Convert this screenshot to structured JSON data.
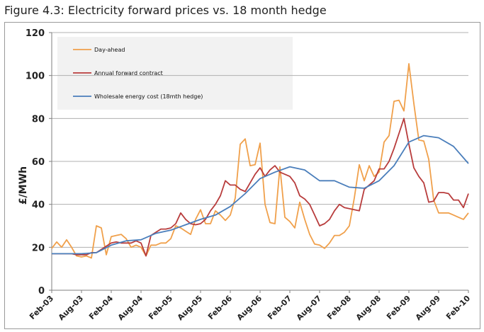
{
  "figure_title": "Figure 4.3: Electricity forward prices vs. 18 month hedge",
  "chart_data": {
    "type": "line",
    "title": "Figure 4.3: Electricity forward prices vs. 18 month hedge",
    "xlabel": "",
    "ylabel": "£/MWh",
    "ylim": [
      0,
      120
    ],
    "xlim": [
      "2003-02",
      "2010-02"
    ],
    "grid": "horizontal",
    "legend_placement": "top-left",
    "yticks": [
      0,
      20,
      40,
      60,
      80,
      100,
      120
    ],
    "xtick_labels": [
      "Feb-03",
      "Aug-03",
      "Feb-04",
      "Aug-04",
      "Feb-05",
      "Aug-05",
      "Feb-06",
      "Aug-06",
      "Feb-07",
      "Aug-07",
      "Feb-08",
      "Aug-08",
      "Feb-09",
      "Aug-09",
      "Feb-10"
    ],
    "series": [
      {
        "name": "Day-ahead",
        "color": "#F0A04B",
        "points": [
          [
            "2003-02",
            19.5
          ],
          [
            "2003-03",
            22.5
          ],
          [
            "2003-04",
            20
          ],
          [
            "2003-05",
            23.5
          ],
          [
            "2003-06",
            20
          ],
          [
            "2003-07",
            16
          ],
          [
            "2003-08",
            15.5
          ],
          [
            "2003-09",
            16
          ],
          [
            "2003-10",
            15
          ],
          [
            "2003-11",
            30
          ],
          [
            "2003-12",
            29
          ],
          [
            "2004-01",
            16.5
          ],
          [
            "2004-02",
            25
          ],
          [
            "2004-03",
            25.5
          ],
          [
            "2004-04",
            26
          ],
          [
            "2004-05",
            24
          ],
          [
            "2004-06",
            20
          ],
          [
            "2004-07",
            21
          ],
          [
            "2004-08",
            20
          ],
          [
            "2004-09",
            16
          ],
          [
            "2004-10",
            21
          ],
          [
            "2004-11",
            21
          ],
          [
            "2004-12",
            22
          ],
          [
            "2005-01",
            22
          ],
          [
            "2005-02",
            24
          ],
          [
            "2005-03",
            30
          ],
          [
            "2005-04",
            29
          ],
          [
            "2005-05",
            27.5
          ],
          [
            "2005-06",
            26
          ],
          [
            "2005-07",
            33
          ],
          [
            "2005-08",
            37.5
          ],
          [
            "2005-09",
            31
          ],
          [
            "2005-10",
            31
          ],
          [
            "2005-11",
            37
          ],
          [
            "2005-12",
            35
          ],
          [
            "2006-01",
            32.5
          ],
          [
            "2006-02",
            35
          ],
          [
            "2006-03",
            43
          ],
          [
            "2006-04",
            68
          ],
          [
            "2006-05",
            70.5
          ],
          [
            "2006-06",
            58
          ],
          [
            "2006-07",
            58.5
          ],
          [
            "2006-08",
            68.5
          ],
          [
            "2006-09",
            40
          ],
          [
            "2006-10",
            31.5
          ],
          [
            "2006-11",
            31
          ],
          [
            "2006-12",
            57.5
          ],
          [
            "2007-01",
            34
          ],
          [
            "2007-02",
            32
          ],
          [
            "2007-03",
            29
          ],
          [
            "2007-04",
            41
          ],
          [
            "2007-05",
            33
          ],
          [
            "2007-06",
            26
          ],
          [
            "2007-07",
            21.5
          ],
          [
            "2007-08",
            21
          ],
          [
            "2007-09",
            19.5
          ],
          [
            "2007-10",
            22
          ],
          [
            "2007-11",
            25.5
          ],
          [
            "2007-12",
            25.5
          ],
          [
            "2008-01",
            27
          ],
          [
            "2008-02",
            30
          ],
          [
            "2008-03",
            43
          ],
          [
            "2008-04",
            58.5
          ],
          [
            "2008-05",
            51
          ],
          [
            "2008-06",
            58
          ],
          [
            "2008-07",
            53
          ],
          [
            "2008-08",
            55
          ],
          [
            "2008-09",
            69
          ],
          [
            "2008-10",
            72
          ],
          [
            "2008-11",
            88
          ],
          [
            "2008-12",
            88.5
          ],
          [
            "2009-01",
            83.5
          ],
          [
            "2009-02",
            105.5
          ],
          [
            "2009-03",
            87
          ],
          [
            "2009-04",
            70
          ],
          [
            "2009-05",
            69.5
          ],
          [
            "2009-06",
            61
          ],
          [
            "2009-07",
            42
          ],
          [
            "2009-08",
            36
          ],
          [
            "2009-09",
            36
          ],
          [
            "2009-10",
            36
          ],
          [
            "2009-11",
            35
          ],
          [
            "2009-12",
            34
          ],
          [
            "2010-01",
            33
          ],
          [
            "2010-02",
            36
          ]
        ]
      },
      {
        "name": "Annual forward contract",
        "color": "#B83C3C",
        "points": [
          [
            "2003-02",
            17
          ],
          [
            "2003-04",
            17
          ],
          [
            "2003-06",
            17
          ],
          [
            "2003-07",
            16.5
          ],
          [
            "2003-08",
            16.5
          ],
          [
            "2003-09",
            16.5
          ],
          [
            "2003-10",
            17.5
          ],
          [
            "2003-11",
            17.5
          ],
          [
            "2003-12",
            19
          ],
          [
            "2004-01",
            20.5
          ],
          [
            "2004-02",
            22
          ],
          [
            "2004-03",
            22.5
          ],
          [
            "2004-04",
            22
          ],
          [
            "2004-05",
            22
          ],
          [
            "2004-06",
            22
          ],
          [
            "2004-07",
            23
          ],
          [
            "2004-08",
            22
          ],
          [
            "2004-09",
            16
          ],
          [
            "2004-10",
            25.5
          ],
          [
            "2004-11",
            27
          ],
          [
            "2004-12",
            28.5
          ],
          [
            "2005-01",
            28.5
          ],
          [
            "2005-02",
            29
          ],
          [
            "2005-03",
            31
          ],
          [
            "2005-04",
            36
          ],
          [
            "2005-05",
            33
          ],
          [
            "2005-06",
            31
          ],
          [
            "2005-07",
            30.5
          ],
          [
            "2005-08",
            31
          ],
          [
            "2005-09",
            33
          ],
          [
            "2005-10",
            37
          ],
          [
            "2005-11",
            40
          ],
          [
            "2005-12",
            44
          ],
          [
            "2006-01",
            51
          ],
          [
            "2006-02",
            49
          ],
          [
            "2006-03",
            49
          ],
          [
            "2006-04",
            47
          ],
          [
            "2006-05",
            46
          ],
          [
            "2006-06",
            50
          ],
          [
            "2006-07",
            54
          ],
          [
            "2006-08",
            57
          ],
          [
            "2006-09",
            53
          ],
          [
            "2006-10",
            56
          ],
          [
            "2006-11",
            58
          ],
          [
            "2006-12",
            55
          ],
          [
            "2007-01",
            54
          ],
          [
            "2007-02",
            53
          ],
          [
            "2007-03",
            50
          ],
          [
            "2007-04",
            44
          ],
          [
            "2007-05",
            42.5
          ],
          [
            "2007-06",
            40
          ],
          [
            "2007-07",
            35
          ],
          [
            "2007-08",
            30
          ],
          [
            "2007-09",
            31
          ],
          [
            "2007-10",
            33
          ],
          [
            "2007-11",
            37
          ],
          [
            "2007-12",
            40
          ],
          [
            "2008-01",
            38.5
          ],
          [
            "2008-02",
            38
          ],
          [
            "2008-03",
            37.5
          ],
          [
            "2008-04",
            37
          ],
          [
            "2008-05",
            47
          ],
          [
            "2008-06",
            49
          ],
          [
            "2008-07",
            51
          ],
          [
            "2008-08",
            56.5
          ],
          [
            "2008-09",
            56.5
          ],
          [
            "2008-10",
            60
          ],
          [
            "2008-11",
            66
          ],
          [
            "2008-12",
            73
          ],
          [
            "2009-01",
            80
          ],
          [
            "2009-02",
            68
          ],
          [
            "2009-03",
            57
          ],
          [
            "2009-04",
            53
          ],
          [
            "2009-05",
            50
          ],
          [
            "2009-06",
            41
          ],
          [
            "2009-07",
            41.5
          ],
          [
            "2009-08",
            45.5
          ],
          [
            "2009-09",
            45.5
          ],
          [
            "2009-10",
            45
          ],
          [
            "2009-11",
            42
          ],
          [
            "2009-12",
            42
          ],
          [
            "2010-01",
            38.5
          ],
          [
            "2010-02",
            45
          ]
        ]
      },
      {
        "name": "Wholesale energy cost (18mth hedge)",
        "color": "#4A7EBB",
        "points": [
          [
            "2003-02",
            17
          ],
          [
            "2003-05",
            17
          ],
          [
            "2003-08",
            17
          ],
          [
            "2003-11",
            17.5
          ],
          [
            "2004-02",
            21
          ],
          [
            "2004-05",
            23
          ],
          [
            "2004-08",
            23.5
          ],
          [
            "2004-11",
            26.5
          ],
          [
            "2005-02",
            28
          ],
          [
            "2005-05",
            30.5
          ],
          [
            "2005-08",
            33
          ],
          [
            "2005-11",
            35
          ],
          [
            "2006-02",
            39
          ],
          [
            "2006-05",
            45
          ],
          [
            "2006-08",
            52
          ],
          [
            "2006-11",
            55
          ],
          [
            "2007-02",
            57.5
          ],
          [
            "2007-05",
            56
          ],
          [
            "2007-08",
            51
          ],
          [
            "2007-11",
            51
          ],
          [
            "2008-02",
            48
          ],
          [
            "2008-05",
            47.5
          ],
          [
            "2008-08",
            51
          ],
          [
            "2008-11",
            58
          ],
          [
            "2009-02",
            69
          ],
          [
            "2009-05",
            72
          ],
          [
            "2009-08",
            71
          ],
          [
            "2009-11",
            67
          ],
          [
            "2010-02",
            59
          ]
        ]
      }
    ]
  }
}
